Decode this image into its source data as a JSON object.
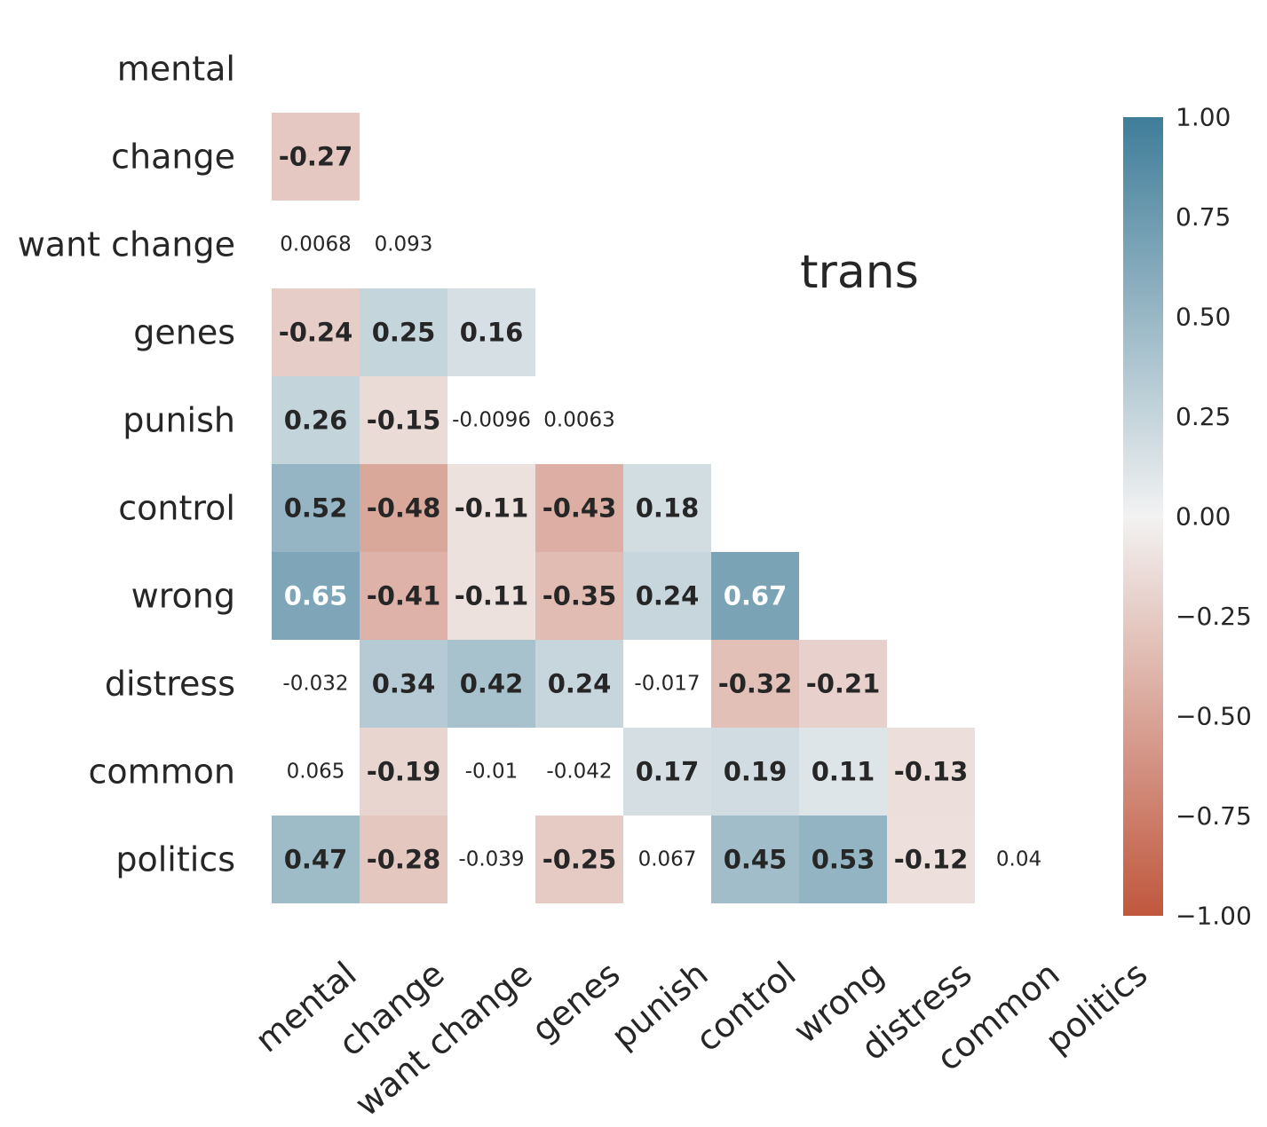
{
  "chart_data": {
    "type": "heatmap",
    "title": "",
    "annotation": "trans",
    "variables": [
      "mental",
      "change",
      "want change",
      "genes",
      "punish",
      "control",
      "wrong",
      "distress",
      "common",
      "politics"
    ],
    "matrix": [
      [],
      [
        "-0.27"
      ],
      [
        "0.0068",
        "0.093"
      ],
      [
        "-0.24",
        "0.25",
        "0.16"
      ],
      [
        "0.26",
        "-0.15",
        "-0.0096",
        "0.0063"
      ],
      [
        "0.52",
        "-0.48",
        "-0.11",
        "-0.43",
        "0.18"
      ],
      [
        "0.65",
        "-0.41",
        "-0.11",
        "-0.35",
        "0.24",
        "0.67"
      ],
      [
        "-0.032",
        "0.34",
        "0.42",
        "0.24",
        "-0.017",
        "-0.32",
        "-0.21"
      ],
      [
        "0.065",
        "-0.19",
        "-0.01",
        "-0.042",
        "0.17",
        "0.19",
        "0.11",
        "-0.13"
      ],
      [
        "0.47",
        "-0.28",
        "-0.039",
        "-0.25",
        "0.067",
        "0.45",
        "0.53",
        "-0.12",
        "0.04"
      ]
    ],
    "significance_threshold": 0.1,
    "colorbar": {
      "range": [
        -1.0,
        1.0
      ],
      "ticks": [
        "1.00",
        "0.75",
        "0.50",
        "0.25",
        "0.00",
        "−0.25",
        "−0.50",
        "−0.75",
        "−1.00"
      ],
      "colors": {
        "negative": "#c0573d",
        "center": "#f2f2f2",
        "positive": "#3f7d99"
      }
    },
    "colors": {
      "text_dark": "#262626",
      "text_light": "#ffffff"
    }
  }
}
